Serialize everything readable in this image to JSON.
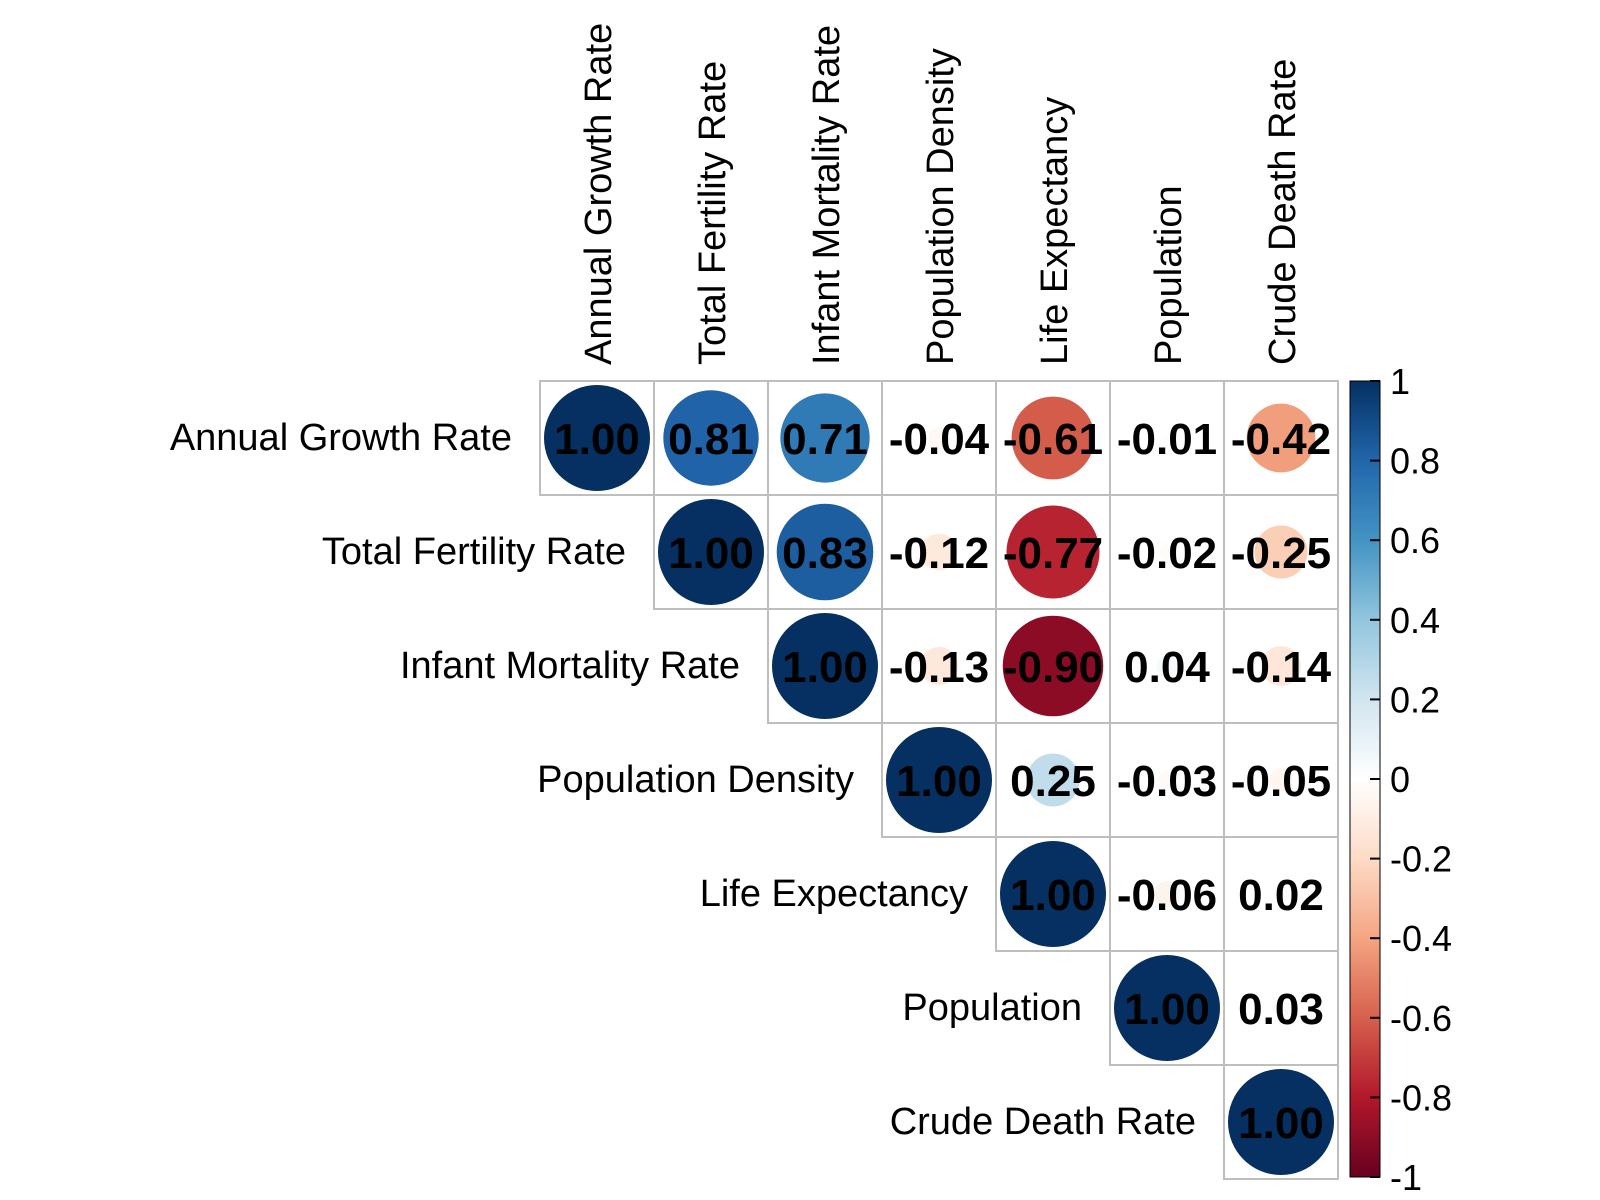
{
  "chart_data": {
    "type": "heatmap",
    "subtype": "correlation-matrix-upper",
    "variables": [
      "Annual Growth Rate",
      "Total Fertility Rate",
      "Infant Mortality Rate",
      "Population Density",
      "Life Expectancy",
      "Population",
      "Crude Death Rate"
    ],
    "matrix": [
      [
        1.0,
        0.81,
        0.71,
        -0.04,
        -0.61,
        -0.01,
        -0.42
      ],
      [
        null,
        1.0,
        0.83,
        -0.12,
        -0.77,
        -0.02,
        -0.25
      ],
      [
        null,
        null,
        1.0,
        -0.13,
        -0.9,
        0.04,
        -0.14
      ],
      [
        null,
        null,
        null,
        1.0,
        0.25,
        -0.03,
        -0.05
      ],
      [
        null,
        null,
        null,
        null,
        1.0,
        -0.06,
        0.02
      ],
      [
        null,
        null,
        null,
        null,
        null,
        1.0,
        0.03
      ],
      [
        null,
        null,
        null,
        null,
        null,
        null,
        1.0
      ]
    ],
    "value_labels": [
      [
        "1.00",
        "0.81",
        "0.71",
        "-0.04",
        "-0.61",
        "-0.01",
        "-0.42"
      ],
      [
        null,
        "1.00",
        "0.83",
        "-0.12",
        "-0.77",
        "-0.02",
        "-0.25"
      ],
      [
        null,
        null,
        "1.00",
        "-0.13",
        "-0.90",
        "0.04",
        "-0.14"
      ],
      [
        null,
        null,
        null,
        "1.00",
        "0.25",
        "-0.03",
        "-0.05"
      ],
      [
        null,
        null,
        null,
        null,
        "1.00",
        "-0.06",
        "0.02"
      ],
      [
        null,
        null,
        null,
        null,
        null,
        "1.00",
        "0.03"
      ],
      [
        null,
        null,
        null,
        null,
        null,
        null,
        "1.00"
      ]
    ],
    "colorbar": {
      "range": [
        -1,
        1
      ],
      "ticks": [
        "1",
        "0.8",
        "0.6",
        "0.4",
        "0.2",
        "0",
        "-0.2",
        "-0.4",
        "-0.6",
        "-0.8",
        "-1"
      ],
      "tick_values": [
        1,
        0.8,
        0.6,
        0.4,
        0.2,
        0,
        -0.2,
        -0.4,
        -0.6,
        -0.8,
        -1
      ],
      "colors": [
        "#67001F",
        "#B2182B",
        "#D6604D",
        "#F4A582",
        "#FDDBC7",
        "#FFFFFF",
        "#D1E5F0",
        "#92C5DE",
        "#4393C3",
        "#2166AC",
        "#053061"
      ]
    },
    "marker": "circle",
    "legend_position": "right",
    "grid": true
  }
}
